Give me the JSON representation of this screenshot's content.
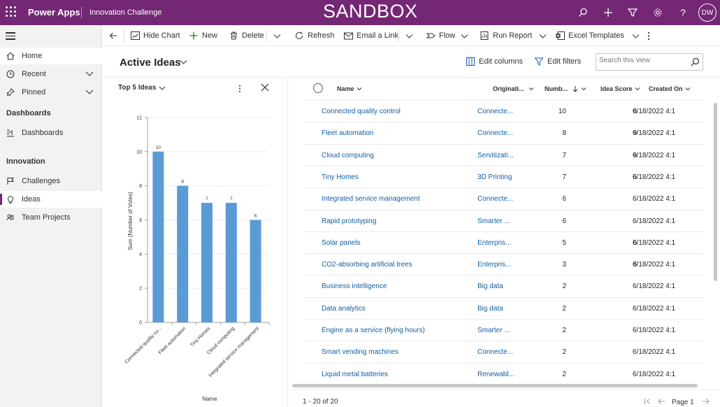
{
  "header": {
    "app_name": "Power Apps",
    "env_name": "Innovation Challenge",
    "sandbox_label": "SANDBOX",
    "avatar_initials": "DW",
    "bg_color": "#742774"
  },
  "sidebar": {
    "home": "Home",
    "recent": "Recent",
    "pinned": "Pinned",
    "section_dashboards": "Dashboards",
    "dashboards": "Dashboards",
    "section_innovation": "Innovation",
    "challenges": "Challenges",
    "ideas": "Ideas",
    "team_projects": "Team Projects"
  },
  "commandbar": {
    "hide_chart": "Hide Chart",
    "new": "New",
    "delete": "Delete",
    "refresh": "Refresh",
    "email_link": "Email a Link",
    "flow": "Flow",
    "run_report": "Run Report",
    "excel_templates": "Excel Templates"
  },
  "view": {
    "title": "Active Ideas",
    "edit_columns": "Edit columns",
    "edit_filters": "Edit filters",
    "search_placeholder": "Search this view"
  },
  "chart": {
    "title": "Top 5 Ideas",
    "xlabel": "Name",
    "ylabel": "Sum (Number of Votes)"
  },
  "chart_data": {
    "type": "bar",
    "title": "Top 5 Ideas",
    "categories": [
      "Connected quality co...",
      "Fleet automation",
      "Tiny Homes",
      "Cloud computing",
      "Integrated service management"
    ],
    "values": [
      10,
      8,
      7,
      7,
      6
    ],
    "yticks": [
      0,
      2,
      4,
      6,
      8,
      10,
      12
    ],
    "xlabel": "Name",
    "ylabel": "Sum (Number of Votes)",
    "ylim": [
      0,
      12
    ],
    "grid": true,
    "bar_color": "#5b9bd5"
  },
  "grid": {
    "columns": [
      "Name",
      "Originati...",
      "Numb...",
      "Idea Score",
      "Created On"
    ],
    "rows": [
      {
        "name": "Connected quality control",
        "origin": "Connecte...",
        "votes": "10",
        "score": "8",
        "created": "6/18/2022 4:1"
      },
      {
        "name": "Fleet automation",
        "origin": "Connecte...",
        "votes": "8",
        "score": "9",
        "created": "6/18/2022 4:1"
      },
      {
        "name": "Cloud computing",
        "origin": "Servitizati...",
        "votes": "7",
        "score": "9",
        "created": "6/18/2022 4:1"
      },
      {
        "name": "Tiny Homes",
        "origin": "3D Printing",
        "votes": "7",
        "score": "6",
        "created": "6/18/2022 4:1"
      },
      {
        "name": "Integrated service management",
        "origin": "Connecte...",
        "votes": "6",
        "score": "",
        "created": "6/18/2022 4:1"
      },
      {
        "name": "Rapid prototyping",
        "origin": "Smarter ...",
        "votes": "6",
        "score": "",
        "created": "6/18/2022 4:1"
      },
      {
        "name": "Solar panels",
        "origin": "Enterpris...",
        "votes": "5",
        "score": "6",
        "created": "6/18/2022 4:1"
      },
      {
        "name": "CO2-absorbing artificial trees",
        "origin": "Enterpris...",
        "votes": "3",
        "score": "8",
        "created": "6/18/2022 4:1"
      },
      {
        "name": "Business intelligence",
        "origin": "Big data",
        "votes": "2",
        "score": "",
        "created": "6/18/2022 4:1"
      },
      {
        "name": "Data analytics",
        "origin": "Big data",
        "votes": "2",
        "score": "",
        "created": "6/18/2022 4:1"
      },
      {
        "name": "Engine as a service (flying hours)",
        "origin": "Smarter ...",
        "votes": "2",
        "score": "",
        "created": "6/18/2022 4:1"
      },
      {
        "name": "Smart vending machines",
        "origin": "Connecte...",
        "votes": "2",
        "score": "",
        "created": "6/18/2022 4:1"
      },
      {
        "name": "Liquid metal batteries",
        "origin": "Renewabl...",
        "votes": "2",
        "score": "",
        "created": "6/18/2022 4:1"
      }
    ],
    "record_count": "1 - 20 of 20",
    "page_label": "Page 1"
  }
}
